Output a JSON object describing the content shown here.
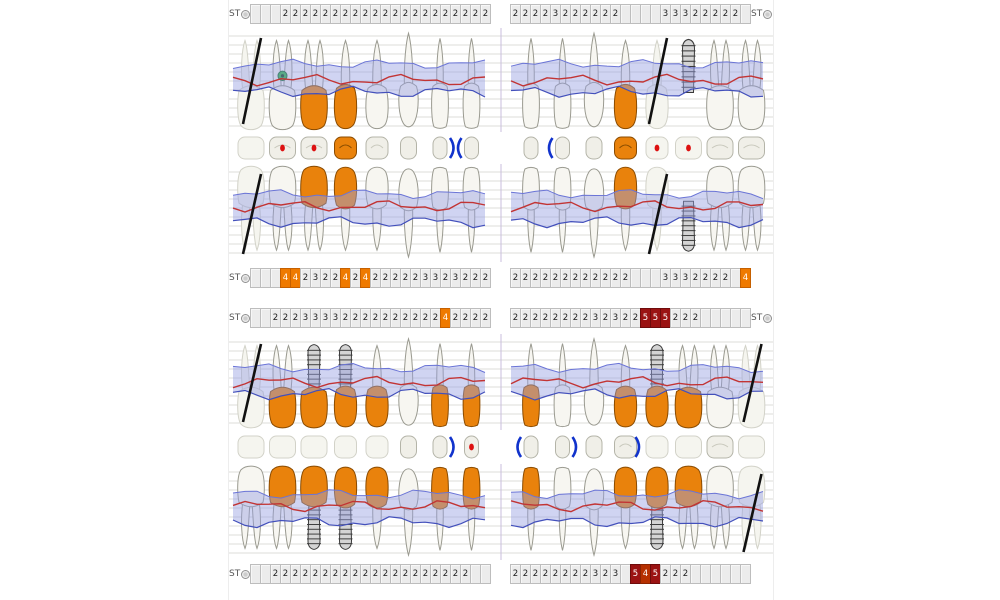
{
  "labels": {
    "st": "ST"
  },
  "colors": {
    "cell_bg": "#ececec",
    "cell_border": "#bdbdbd",
    "cell_text": "#1c1c1c",
    "hl_orange": "#ef7a00",
    "hl_dark_red": "#9b1313",
    "hl_red_orange": "#b63000",
    "crown": "#e9820c",
    "crown_stroke": "#8a4b00",
    "tooth_fill": "#f7f6f1",
    "tooth_stroke": "#9a9a90",
    "ghost_fill": "#f5f5ef",
    "ghost_stroke": "#d2d2c8",
    "gum_fill": "#97a0e2",
    "gum_edge_top": "#6a74d6",
    "gum_edge_bottom": "#4350bb",
    "gingiva_line": "#c23434",
    "implant_fill": "#d4d4d4",
    "implant_stroke": "#3a3a3a",
    "grid_line": "#dcdcda",
    "midline": "#c9bedc",
    "missing_mark": "#111111",
    "occ_fill": "#f0efe8",
    "occ_stroke": "#b4b4a8",
    "occ_mark_red": "#dd1111",
    "occ_bracket_blue": "#1133cc",
    "green_mark": "#27b53c"
  },
  "rows": {
    "upper_top": {
      "left_label": "ST",
      "right_label": "ST",
      "left": [
        "",
        "",
        "",
        "2",
        "2",
        "2",
        "2",
        "2",
        "2",
        "2",
        "2",
        "2",
        "2",
        "2",
        "2",
        "2",
        "2",
        "2",
        "2",
        "2",
        "2",
        "2",
        "2",
        "2"
      ],
      "right": [
        "2",
        "2",
        "2",
        "2",
        "3",
        "2",
        "2",
        "2",
        "2",
        "2",
        "2",
        "",
        "",
        "",
        "",
        "3",
        "3",
        "3",
        "2",
        "2",
        "2",
        "2",
        "2",
        ""
      ]
    },
    "upper_bottom": {
      "left_label": "ST",
      "right_label": "",
      "left": [
        "",
        "",
        "",
        {
          "v": "4",
          "hl": "orange"
        },
        {
          "v": "4",
          "hl": "orange"
        },
        "2",
        "3",
        "2",
        "2",
        {
          "v": "4",
          "hl": "orange"
        },
        "2",
        {
          "v": "4",
          "hl": "orange"
        },
        "2",
        "2",
        "2",
        "2",
        "2",
        "3",
        "3",
        "2",
        "3",
        "2",
        "2",
        "2"
      ],
      "right": [
        "2",
        "2",
        "2",
        "2",
        "2",
        "2",
        "2",
        "2",
        "2",
        "2",
        "2",
        "2",
        "",
        "",
        "",
        "3",
        "3",
        "3",
        "2",
        "2",
        "2",
        "2",
        "",
        {
          "v": "4",
          "hl": "orange"
        }
      ]
    },
    "lower_top": {
      "left_label": "ST",
      "right_label": "ST",
      "left": [
        "",
        "",
        "2",
        "2",
        "2",
        "3",
        "3",
        "3",
        "3",
        "2",
        "2",
        "2",
        "2",
        "2",
        "2",
        "2",
        "2",
        "2",
        "2",
        {
          "v": "4",
          "hl": "orange"
        },
        "2",
        "2",
        "2",
        "2"
      ],
      "right": [
        "2",
        "2",
        "2",
        "2",
        "2",
        "2",
        "2",
        "2",
        "3",
        "2",
        "3",
        "2",
        "2",
        {
          "v": "5",
          "hl": "darkred"
        },
        {
          "v": "5",
          "hl": "darkred"
        },
        {
          "v": "5",
          "hl": "darkred"
        },
        "2",
        "2",
        "2",
        "",
        "",
        "",
        "",
        ""
      ]
    },
    "lower_bottom": {
      "left_label": "ST",
      "right_label": "",
      "left": [
        "",
        "",
        "2",
        "2",
        "2",
        "2",
        "2",
        "2",
        "2",
        "2",
        "2",
        "2",
        "2",
        "2",
        "2",
        "2",
        "2",
        "2",
        "2",
        "2",
        "2",
        "2",
        "",
        ""
      ],
      "right": [
        "2",
        "2",
        "2",
        "2",
        "2",
        "2",
        "2",
        "2",
        "3",
        "2",
        "3",
        "",
        {
          "v": "5",
          "hl": "darkred"
        },
        {
          "v": "4",
          "hl": "redorange"
        },
        {
          "v": "5",
          "hl": "darkred"
        },
        "2",
        "2",
        "2",
        "",
        "",
        "",
        "",
        "",
        ""
      ]
    }
  },
  "upper_teeth": [
    {
      "id": "18",
      "kind": "molar",
      "status": "missing"
    },
    {
      "id": "17",
      "kind": "molar",
      "status": "normal",
      "mark": "green-circle"
    },
    {
      "id": "16",
      "kind": "molar",
      "status": "crown"
    },
    {
      "id": "15",
      "kind": "premolar",
      "status": "crown"
    },
    {
      "id": "14",
      "kind": "premolar",
      "status": "normal"
    },
    {
      "id": "13",
      "kind": "canine",
      "status": "normal"
    },
    {
      "id": "12",
      "kind": "incisor",
      "status": "normal"
    },
    {
      "id": "11",
      "kind": "incisor",
      "status": "normal"
    },
    {
      "id": "21",
      "kind": "incisor",
      "status": "normal"
    },
    {
      "id": "22",
      "kind": "incisor",
      "status": "normal"
    },
    {
      "id": "23",
      "kind": "canine",
      "status": "normal"
    },
    {
      "id": "24",
      "kind": "premolar",
      "status": "crown"
    },
    {
      "id": "25",
      "kind": "premolar",
      "status": "missing"
    },
    {
      "id": "26",
      "kind": "molar",
      "status": "implant",
      "implant_crown": false
    },
    {
      "id": "27",
      "kind": "molar",
      "status": "normal"
    },
    {
      "id": "28",
      "kind": "molar",
      "status": "normal"
    }
  ],
  "lower_teeth": [
    {
      "id": "48",
      "kind": "molar",
      "status": "normal",
      "lingual_ghost": true
    },
    {
      "id": "47",
      "kind": "molar",
      "status": "crown"
    },
    {
      "id": "46",
      "kind": "molar",
      "status": "implant",
      "implant_crown": true
    },
    {
      "id": "45",
      "kind": "premolar",
      "status": "implant",
      "implant_crown": true
    },
    {
      "id": "44",
      "kind": "premolar",
      "status": "crown"
    },
    {
      "id": "43",
      "kind": "canine",
      "status": "normal"
    },
    {
      "id": "42",
      "kind": "incisor",
      "status": "crown"
    },
    {
      "id": "41",
      "kind": "incisor",
      "status": "crown"
    },
    {
      "id": "31",
      "kind": "incisor",
      "status": "crown"
    },
    {
      "id": "32",
      "kind": "incisor",
      "status": "normal"
    },
    {
      "id": "33",
      "kind": "canine",
      "status": "normal"
    },
    {
      "id": "34",
      "kind": "premolar",
      "status": "crown"
    },
    {
      "id": "35",
      "kind": "premolar",
      "status": "implant",
      "implant_crown": true
    },
    {
      "id": "36",
      "kind": "molar",
      "status": "crown"
    },
    {
      "id": "37",
      "kind": "molar",
      "status": "normal"
    },
    {
      "id": "38",
      "kind": "molar",
      "status": "missing"
    }
  ],
  "upper_occlusal": [
    {
      "shape": "molar",
      "style": "ghost",
      "marks": []
    },
    {
      "shape": "molar",
      "style": "plain",
      "marks": [
        "red-dot"
      ]
    },
    {
      "shape": "molar",
      "style": "plain",
      "marks": [
        "red-dot"
      ]
    },
    {
      "shape": "premolar",
      "style": "crown",
      "marks": []
    },
    {
      "shape": "premolar",
      "style": "plain",
      "marks": []
    },
    {
      "shape": "canine",
      "style": "plain",
      "marks": []
    },
    {
      "shape": "incisor",
      "style": "plain",
      "marks": [
        "bracket-right"
      ]
    },
    {
      "shape": "incisor",
      "style": "plain",
      "marks": [
        "bracket-left"
      ]
    },
    {
      "shape": "incisor",
      "style": "plain",
      "marks": []
    },
    {
      "shape": "incisor",
      "style": "plain",
      "marks": [
        "bracket-left"
      ]
    },
    {
      "shape": "canine",
      "style": "plain",
      "marks": []
    },
    {
      "shape": "premolar",
      "style": "crown",
      "marks": []
    },
    {
      "shape": "premolar",
      "style": "ghost",
      "marks": [
        "red-dot"
      ]
    },
    {
      "shape": "molar",
      "style": "ghost",
      "marks": [
        "red-dot"
      ]
    },
    {
      "shape": "molar",
      "style": "plain",
      "marks": []
    },
    {
      "shape": "molar",
      "style": "plain",
      "marks": []
    }
  ],
  "lower_occlusal": [
    {
      "shape": "molar",
      "style": "ghost",
      "marks": []
    },
    {
      "shape": "molar",
      "style": "ghost",
      "marks": []
    },
    {
      "shape": "molar",
      "style": "ghost",
      "marks": []
    },
    {
      "shape": "premolar",
      "style": "ghost",
      "marks": []
    },
    {
      "shape": "premolar",
      "style": "ghost",
      "marks": []
    },
    {
      "shape": "canine",
      "style": "plain",
      "marks": []
    },
    {
      "shape": "incisor",
      "style": "plain",
      "marks": [
        "bracket-right"
      ]
    },
    {
      "shape": "incisor",
      "style": "plain",
      "marks": [
        "red-dot"
      ]
    },
    {
      "shape": "incisor",
      "style": "plain",
      "marks": [
        "bracket-left"
      ]
    },
    {
      "shape": "incisor",
      "style": "plain",
      "marks": [
        "bracket-right"
      ]
    },
    {
      "shape": "canine",
      "style": "plain",
      "marks": []
    },
    {
      "shape": "premolar",
      "style": "plain",
      "marks": [
        "bracket-right"
      ]
    },
    {
      "shape": "premolar",
      "style": "ghost",
      "marks": []
    },
    {
      "shape": "molar",
      "style": "ghost",
      "marks": []
    },
    {
      "shape": "molar",
      "style": "plain",
      "marks": []
    },
    {
      "shape": "molar",
      "style": "ghost",
      "marks": []
    }
  ]
}
